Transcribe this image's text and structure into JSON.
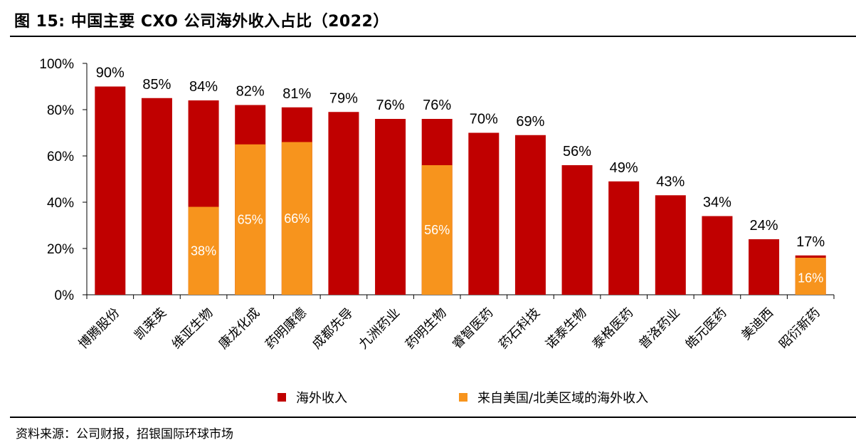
{
  "title": "图 15: 中国主要 CXO 公司海外收入占比（2022）",
  "source": "资料来源：公司财报，招银国际环球市场",
  "colors": {
    "overseas": "#c00000",
    "us": "#f7941d"
  },
  "legend": {
    "overseas": "海外收入",
    "us": "来自美国/北美区域的海外收入"
  },
  "chart_data": {
    "type": "bar",
    "categories": [
      "博腾股份",
      "凯莱英",
      "维亚生物",
      "康龙化成",
      "药明康德",
      "成都先导",
      "九洲药业",
      "药明生物",
      "睿智医药",
      "药石科技",
      "诺泰生物",
      "泰格医药",
      "普洛药业",
      "皓元医药",
      "美迪西",
      "昭衍新药"
    ],
    "series": [
      {
        "name": "海外收入",
        "values": [
          90,
          85,
          84,
          82,
          81,
          79,
          76,
          76,
          70,
          69,
          56,
          49,
          43,
          34,
          24,
          17
        ],
        "labels": [
          "90%",
          "85%",
          "84%",
          "82%",
          "81%",
          "79%",
          "76%",
          "76%",
          "70%",
          "69%",
          "56%",
          "49%",
          "43%",
          "34%",
          "24%",
          "17%"
        ]
      },
      {
        "name": "来自美国/北美区域的海外收入",
        "values": [
          null,
          null,
          38,
          65,
          66,
          null,
          null,
          56,
          null,
          null,
          null,
          null,
          null,
          null,
          null,
          16
        ],
        "labels": [
          "",
          "",
          "38%",
          "65%",
          "66%",
          "",
          "",
          "56%",
          "",
          "",
          "",
          "",
          "",
          "",
          "",
          "16%"
        ]
      }
    ],
    "overlay": true,
    "ylim": [
      0,
      100
    ],
    "yticks": [
      "0%",
      "20%",
      "40%",
      "60%",
      "80%",
      "100%"
    ],
    "grid": false,
    "legend_position": "bottom"
  }
}
